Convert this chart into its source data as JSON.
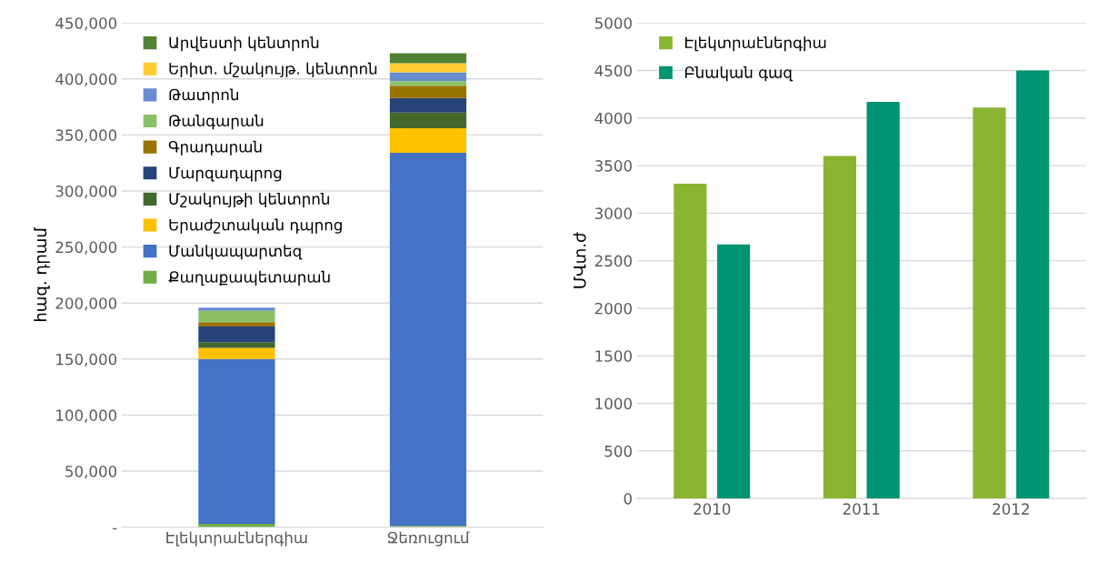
{
  "chart_data": [
    {
      "type": "bar",
      "stacked": true,
      "ylabel": "հազ. դրամ",
      "categories": [
        "Էլեկտրաէներգիա",
        "Ջեռուցում"
      ],
      "ylim": [
        0,
        450000
      ],
      "yticks": [
        {
          "value": 0,
          "label": "-"
        },
        {
          "value": 50000,
          "label": "50,000"
        },
        {
          "value": 100000,
          "label": "100,000"
        },
        {
          "value": 150000,
          "label": "150,000"
        },
        {
          "value": 200000,
          "label": "200,000"
        },
        {
          "value": 250000,
          "label": "250,000"
        },
        {
          "value": 300000,
          "label": "300,000"
        },
        {
          "value": 350000,
          "label": "350,000"
        },
        {
          "value": 400000,
          "label": "400,000"
        },
        {
          "value": 450000,
          "label": "450,000"
        }
      ],
      "grid": "y",
      "legend": "top left",
      "series": [
        {
          "name": "Քաղաքապետարան",
          "color": "#70ad47",
          "values": [
            3000,
            1000
          ]
        },
        {
          "name": "Մանկապարտեզ",
          "color": "#4472c4",
          "values": [
            147000,
            333000
          ]
        },
        {
          "name": "Երաժշտական դպրոց",
          "color": "#ffc000",
          "values": [
            10000,
            22000
          ]
        },
        {
          "name": "Մշակույթի կենտրոն",
          "color": "#43682b",
          "values": [
            5000,
            14000
          ]
        },
        {
          "name": "Մարզադպրոց",
          "color": "#264478",
          "values": [
            14000,
            13000
          ]
        },
        {
          "name": "Գրադարան",
          "color": "#997300",
          "values": [
            4000,
            11000
          ]
        },
        {
          "name": "Թանգարան",
          "color": "#8cc168",
          "values": [
            10000,
            4000
          ]
        },
        {
          "name": "Թատրոն",
          "color": "#698ed0",
          "values": [
            3000,
            8000
          ]
        },
        {
          "name": "Երիտ. մշակույթ. կենտրոն",
          "color": "#ffcd33",
          "values": [
            0,
            8000
          ]
        },
        {
          "name": "Արվեստի կենտրոն",
          "color": "#548235",
          "values": [
            0,
            9000
          ]
        }
      ]
    },
    {
      "type": "bar",
      "ylabel": "ՄՎտ.ժ",
      "categories": [
        "2010",
        "2011",
        "2012"
      ],
      "ylim": [
        0,
        5000
      ],
      "yticks": [
        0,
        500,
        1000,
        1500,
        2000,
        2500,
        3000,
        3500,
        4000,
        4500,
        5000
      ],
      "grid": "y",
      "legend": "top left",
      "series": [
        {
          "name": "Էլեկտրաէներգիա",
          "color": "#8ab533",
          "values": [
            3310,
            3600,
            4110
          ]
        },
        {
          "name": "Բնական գազ",
          "color": "#009473",
          "values": [
            2670,
            4170,
            4500
          ]
        }
      ]
    }
  ]
}
